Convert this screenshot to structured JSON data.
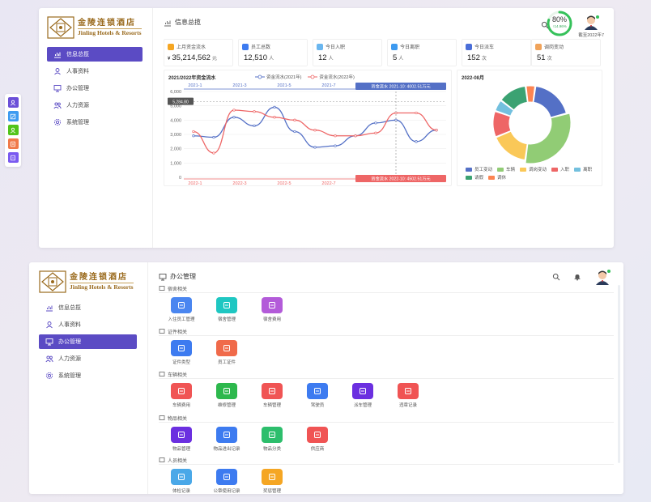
{
  "brand": {
    "cn": "金陵连锁酒店",
    "en": "Jinling Hotels & Resorts",
    "color": "#9a6a1d"
  },
  "sidebar": {
    "items": [
      {
        "label": "信息总揽",
        "icon": "chart-icon"
      },
      {
        "label": "人事资料",
        "icon": "user-icon"
      },
      {
        "label": "办公管理",
        "icon": "monitor-icon"
      },
      {
        "label": "人力资源",
        "icon": "users-icon"
      },
      {
        "label": "系统管理",
        "icon": "gear-icon"
      }
    ],
    "accent": "#5b4bc4"
  },
  "dashboard": {
    "title": "信息总揽",
    "progress": {
      "text": "80%",
      "sub": "↑14.96%",
      "value": 0.8
    },
    "date_label": "截至2022年7",
    "stats": [
      {
        "label": "上月资金流水",
        "prefix": "¥",
        "value": "35,214,562",
        "unit": "元",
        "color": "#f5a623"
      },
      {
        "label": "员工总数",
        "prefix": "",
        "value": "12,510",
        "unit": "人",
        "color": "#3d7bf0"
      },
      {
        "label": "今日入职",
        "prefix": "",
        "value": "12",
        "unit": "人",
        "color": "#6ab6ef"
      },
      {
        "label": "今日离职",
        "prefix": "",
        "value": "5",
        "unit": "人",
        "color": "#3d9af0"
      },
      {
        "label": "今日派车",
        "prefix": "",
        "value": "152",
        "unit": "次",
        "color": "#4a6ed8"
      },
      {
        "label": "调岗变动",
        "prefix": "",
        "value": "51",
        "unit": "次",
        "color": "#f0a35a"
      }
    ]
  },
  "chart_data": [
    {
      "type": "line",
      "title": "2021/2022年资金流水",
      "x_top": [
        "2021-1",
        "2021-3",
        "2021-5",
        "2021-7"
      ],
      "x_bottom": [
        "2022-1",
        "2022-3",
        "2022-5",
        "2022-7"
      ],
      "ylim": [
        0,
        6000
      ],
      "yticks": [
        "6,000",
        "5,000",
        "4,000",
        "3,000",
        "2,000",
        "1,000",
        "0"
      ],
      "series": [
        {
          "name": "资金流水(2021年)",
          "color": "#5470c6",
          "values": [
            2900,
            2800,
            4200,
            3600,
            4900,
            3200,
            2100,
            2200,
            2900,
            3800,
            4000,
            2500,
            3300
          ]
        },
        {
          "name": "资金流水(2022年)",
          "color": "#ee6666",
          "values": [
            3200,
            1700,
            4700,
            4600,
            4200,
            4000,
            3300,
            2900,
            2900,
            3100,
            4500,
            4500,
            3300
          ]
        }
      ],
      "tooltip_top": "资金流水  2021-10:  4002.51万元",
      "tooltip_bottom": "资金流水  2022-10:  4502.51万元",
      "pointer_value": "5,284.80"
    },
    {
      "type": "pie",
      "title": "2022-08月",
      "slices": [
        {
          "name": "员工变动",
          "value": 18,
          "color": "#5470c6"
        },
        {
          "name": "车辆",
          "value": 30,
          "color": "#91cc75"
        },
        {
          "name": "调岗变动",
          "value": 16,
          "color": "#fac858"
        },
        {
          "name": "入职",
          "value": 11,
          "color": "#ee6666"
        },
        {
          "name": "离职",
          "value": 5,
          "color": "#73c0de"
        },
        {
          "name": "请假",
          "value": 12,
          "color": "#3ba272"
        },
        {
          "name": "调休",
          "value": 4,
          "color": "#fc8452"
        }
      ]
    }
  ],
  "office": {
    "title": "办公管理",
    "sections": [
      {
        "title": "宿舍相关",
        "icon": "building-icon",
        "tiles": [
          {
            "label": "入住员工管理",
            "color": "#4a86f0",
            "icon": "person-icon"
          },
          {
            "label": "宿舍管理",
            "color": "#1fc7c2",
            "icon": "bed-icon"
          },
          {
            "label": "宿舍费用",
            "color": "#b35bd9",
            "icon": "bill-icon"
          }
        ]
      },
      {
        "title": "证件相关",
        "icon": "card-icon",
        "tiles": [
          {
            "label": "证件类型",
            "color": "#3d7bf0",
            "icon": "card-icon"
          },
          {
            "label": "员工证件",
            "color": "#f06a4a",
            "icon": "id-icon"
          }
        ]
      },
      {
        "title": "车辆相关",
        "icon": "car-icon",
        "tiles": [
          {
            "label": "车辆费用",
            "color": "#f05454",
            "icon": "car-icon"
          },
          {
            "label": "维修管理",
            "color": "#2db84d",
            "icon": "wrench-icon"
          },
          {
            "label": "车辆管理",
            "color": "#f05454",
            "icon": "car-icon"
          },
          {
            "label": "驾驶员",
            "color": "#3d7bf0",
            "icon": "driver-icon"
          },
          {
            "label": "派车管理",
            "color": "#6b2fe0",
            "icon": "truck-icon"
          },
          {
            "label": "违章记录",
            "color": "#f05454",
            "icon": "alert-icon"
          }
        ]
      },
      {
        "title": "物品相关",
        "icon": "box-icon",
        "tiles": [
          {
            "label": "物品管理",
            "color": "#6b2fe0",
            "icon": "box-icon"
          },
          {
            "label": "物品进出记录",
            "color": "#3d7bf0",
            "icon": "swap-icon"
          },
          {
            "label": "物品分类",
            "color": "#2dbe6c",
            "icon": "grid-icon"
          },
          {
            "label": "供应商",
            "color": "#f05454",
            "icon": "supplier-icon"
          }
        ]
      },
      {
        "title": "人员相关",
        "icon": "people-icon",
        "tiles": [
          {
            "label": "体检记录",
            "color": "#4aa8e8",
            "icon": "health-icon"
          },
          {
            "label": "公章使用记录",
            "color": "#3d7bf0",
            "icon": "stamp-icon"
          },
          {
            "label": "奖惩管理",
            "color": "#f5a623",
            "icon": "award-icon"
          }
        ]
      }
    ]
  }
}
